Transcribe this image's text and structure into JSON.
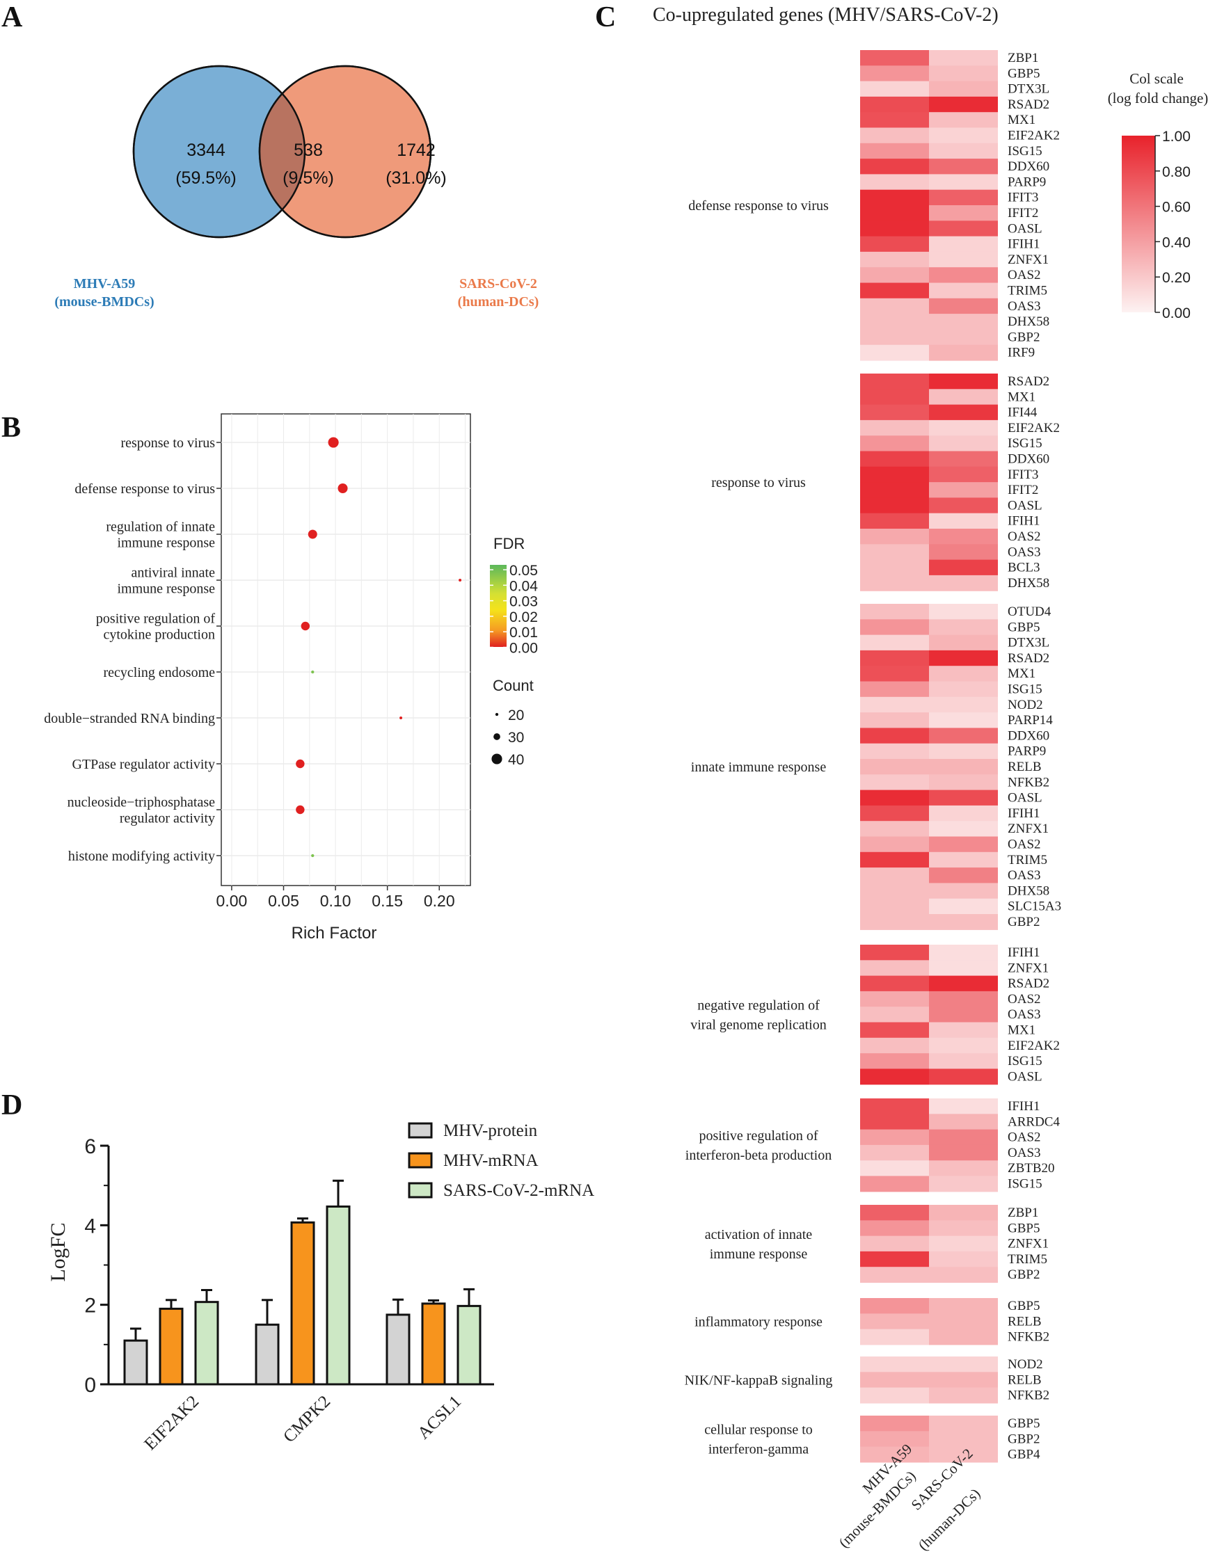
{
  "panels": {
    "a": "A",
    "b": "B",
    "c": "C",
    "d": "D"
  },
  "venn": {
    "left": {
      "count": "3344",
      "pct": "(59.5%)",
      "label1": "MHV-A59",
      "label2": "(mouse-BMDCs)",
      "color": "#7aafd6"
    },
    "mid": {
      "count": "538",
      "pct": "(9.5%)"
    },
    "right": {
      "count": "1742",
      "pct": "(31.0%)",
      "label1": "SARS-CoV-2",
      "label2": "(human-DCs)",
      "color": "#ef9a7a"
    },
    "left_label_color": "#2c7bb6",
    "right_label_color": "#ea7a4a"
  },
  "dotplot": {
    "xlabel": "Rich Factor",
    "xticks": [
      "0.00",
      "0.05",
      "0.10",
      "0.15",
      "0.20"
    ],
    "fdr_title": "FDR",
    "fdr_ticks": [
      "0.05",
      "0.04",
      "0.03",
      "0.02",
      "0.01",
      "0.00"
    ],
    "count_title": "Count",
    "count_ticks": [
      "20",
      "30",
      "40"
    ]
  },
  "heatmap": {
    "title": "Co-upregulated genes (MHV/SARS-CoV-2)",
    "scale_title1": "Col scale",
    "scale_title2": "(log fold change)",
    "scale_ticks": [
      "1.00",
      "0.80",
      "0.60",
      "0.40",
      "0.20",
      "0.00"
    ],
    "col1": "MHV-A59",
    "col1b": "(mouse-BMDCs)",
    "col2": "SARS-CoV-2",
    "col2b": "(human-DCs)"
  },
  "barplot": {
    "ylabel": "LogFC",
    "legend": [
      "MHV-protein",
      "MHV-mRNA",
      "SARS-CoV-2-mRNA"
    ],
    "colors": [
      "#d3d3d3",
      "#f7941d",
      "#cde8c5"
    ],
    "yticks": [
      "0",
      "2",
      "4",
      "6"
    ]
  },
  "chart_data": [
    {
      "type": "venn",
      "sets": [
        "MHV-A59 (mouse-BMDCs)",
        "SARS-CoV-2 (human-DCs)"
      ],
      "only_left": 3344,
      "intersection": 538,
      "only_right": 1742,
      "percent": [
        59.5,
        9.5,
        31.0
      ]
    },
    {
      "type": "scatter",
      "title": "",
      "xlabel": "Rich Factor",
      "xlim": [
        -0.01,
        0.23
      ],
      "categories": [
        "response to virus",
        "defense response to virus",
        "regulation of innate\nimmune response",
        "antiviral innate\nimmune response",
        "positive regulation of\ncytokine production",
        "recycling endosome",
        "double−stranded RNA binding",
        "GTPase regulator activity",
        "nucleoside−triphosphatase\nregulator activity",
        "histone modifying activity"
      ],
      "rich_factor": [
        0.098,
        0.107,
        0.078,
        0.22,
        0.071,
        0.078,
        0.163,
        0.066,
        0.066,
        0.078
      ],
      "fdr": [
        0.0,
        0.0,
        0.0,
        0.0,
        0.0,
        0.045,
        0.0,
        0.0,
        0.0,
        0.045
      ],
      "count": [
        40,
        38,
        36,
        15,
        35,
        20,
        16,
        35,
        35,
        20
      ]
    },
    {
      "type": "heatmap",
      "title": "Co-upregulated genes (MHV/SARS-CoV-2)",
      "columns": [
        "MHV-A59 (mouse-BMDCs)",
        "SARS-CoV-2 (human-DCs)"
      ],
      "value_range": [
        0,
        1
      ],
      "groups": [
        {
          "name": "defense response to virus",
          "genes": [
            "ZBP1",
            "GBP5",
            "DTX3L",
            "RSAD2",
            "MX1",
            "EIF2AK2",
            "ISG15",
            "DDX60",
            "PARP9",
            "IFIT3",
            "IFIT2",
            "OASL",
            "IFIH1",
            "ZNFX1",
            "OAS2",
            "TRIM5",
            "OAS3",
            "DHX58",
            "GBP2",
            "IRF9"
          ],
          "mhv": [
            0.7,
            0.45,
            0.15,
            0.8,
            0.78,
            0.25,
            0.45,
            0.85,
            0.2,
            0.95,
            0.95,
            0.95,
            0.8,
            0.25,
            0.35,
            0.88,
            0.25,
            0.25,
            0.25,
            0.1
          ],
          "sars": [
            0.2,
            0.25,
            0.3,
            0.95,
            0.25,
            0.15,
            0.2,
            0.65,
            0.15,
            0.7,
            0.4,
            0.75,
            0.15,
            0.15,
            0.5,
            0.2,
            0.55,
            0.25,
            0.25,
            0.3
          ]
        },
        {
          "name": "response to virus",
          "genes": [
            "RSAD2",
            "MX1",
            "IFI44",
            "EIF2AK2",
            "ISG15",
            "DDX60",
            "IFIT3",
            "IFIT2",
            "OASL",
            "IFIH1",
            "OAS2",
            "OAS3",
            "BCL3",
            "DHX58"
          ],
          "mhv": [
            0.8,
            0.8,
            0.75,
            0.25,
            0.45,
            0.85,
            0.95,
            0.95,
            0.95,
            0.8,
            0.35,
            0.25,
            0.25,
            0.25
          ],
          "sars": [
            0.95,
            0.25,
            0.9,
            0.15,
            0.2,
            0.65,
            0.7,
            0.4,
            0.75,
            0.15,
            0.5,
            0.55,
            0.85,
            0.25
          ]
        },
        {
          "name": "innate immune response",
          "genes": [
            "OTUD4",
            "GBP5",
            "DTX3L",
            "RSAD2",
            "MX1",
            "ISG15",
            "NOD2",
            "PARP14",
            "DDX60",
            "PARP9",
            "RELB",
            "NFKB2",
            "OASL",
            "IFIH1",
            "ZNFX1",
            "OAS2",
            "TRIM5",
            "OAS3",
            "DHX58",
            "SLC15A3",
            "GBP2"
          ],
          "mhv": [
            0.25,
            0.45,
            0.15,
            0.8,
            0.78,
            0.45,
            0.15,
            0.25,
            0.85,
            0.2,
            0.3,
            0.2,
            0.95,
            0.8,
            0.25,
            0.35,
            0.88,
            0.25,
            0.25,
            0.25,
            0.25
          ],
          "sars": [
            0.1,
            0.25,
            0.3,
            0.95,
            0.25,
            0.2,
            0.15,
            0.1,
            0.65,
            0.15,
            0.3,
            0.25,
            0.8,
            0.15,
            0.1,
            0.5,
            0.2,
            0.55,
            0.25,
            0.1,
            0.25
          ]
        },
        {
          "name": "negative regulation of\nviral genome replication",
          "genes": [
            "IFIH1",
            "ZNFX1",
            "RSAD2",
            "OAS2",
            "OAS3",
            "MX1",
            "EIF2AK2",
            "ISG15",
            "OASL"
          ],
          "mhv": [
            0.8,
            0.25,
            0.8,
            0.35,
            0.25,
            0.78,
            0.25,
            0.45,
            0.95
          ],
          "sars": [
            0.1,
            0.1,
            0.95,
            0.55,
            0.55,
            0.2,
            0.15,
            0.2,
            0.85
          ]
        },
        {
          "name": "positive regulation of\ninterferon-beta production",
          "genes": [
            "IFIH1",
            "ARRDC4",
            "OAS2",
            "OAS3",
            "ZBTB20",
            "ISG15"
          ],
          "mhv": [
            0.8,
            0.8,
            0.4,
            0.25,
            0.1,
            0.45
          ],
          "sars": [
            0.1,
            0.3,
            0.55,
            0.55,
            0.25,
            0.2
          ]
        },
        {
          "name": "activation of innate\nimmune response",
          "genes": [
            "ZBP1",
            "GBP5",
            "ZNFX1",
            "TRIM5",
            "GBP2"
          ],
          "mhv": [
            0.7,
            0.45,
            0.25,
            0.88,
            0.25
          ],
          "sars": [
            0.3,
            0.25,
            0.15,
            0.2,
            0.25
          ]
        },
        {
          "name": "inflammatory response",
          "genes": [
            "GBP5",
            "RELB",
            "NFKB2"
          ],
          "mhv": [
            0.45,
            0.3,
            0.15
          ],
          "sars": [
            0.3,
            0.3,
            0.3
          ]
        },
        {
          "name": "NIK/NF-kappaB signaling",
          "genes": [
            "NOD2",
            "RELB",
            "NFKB2"
          ],
          "mhv": [
            0.15,
            0.3,
            0.15
          ],
          "sars": [
            0.15,
            0.3,
            0.25
          ]
        },
        {
          "name": "cellular response to\ninterferon-gamma",
          "genes": [
            "GBP5",
            "GBP2",
            "GBP4"
          ],
          "mhv": [
            0.45,
            0.35,
            0.3
          ],
          "sars": [
            0.25,
            0.25,
            0.25
          ]
        }
      ]
    },
    {
      "type": "bar",
      "title": "",
      "xlabel": "",
      "ylabel": "LogFC",
      "ylim": [
        0,
        6
      ],
      "categories": [
        "EIF2AK2",
        "CMPK2",
        "ACSL1"
      ],
      "series": [
        {
          "name": "MHV-protein",
          "values": [
            1.1,
            1.5,
            1.75
          ],
          "errors": [
            0.3,
            0.62,
            0.38
          ]
        },
        {
          "name": "MHV-mRNA",
          "values": [
            1.9,
            4.07,
            2.03
          ],
          "errors": [
            0.22,
            0.1,
            0.08
          ]
        },
        {
          "name": "SARS-CoV-2-mRNA",
          "values": [
            2.07,
            4.47,
            1.97
          ],
          "errors": [
            0.3,
            0.65,
            0.42
          ]
        }
      ]
    }
  ]
}
